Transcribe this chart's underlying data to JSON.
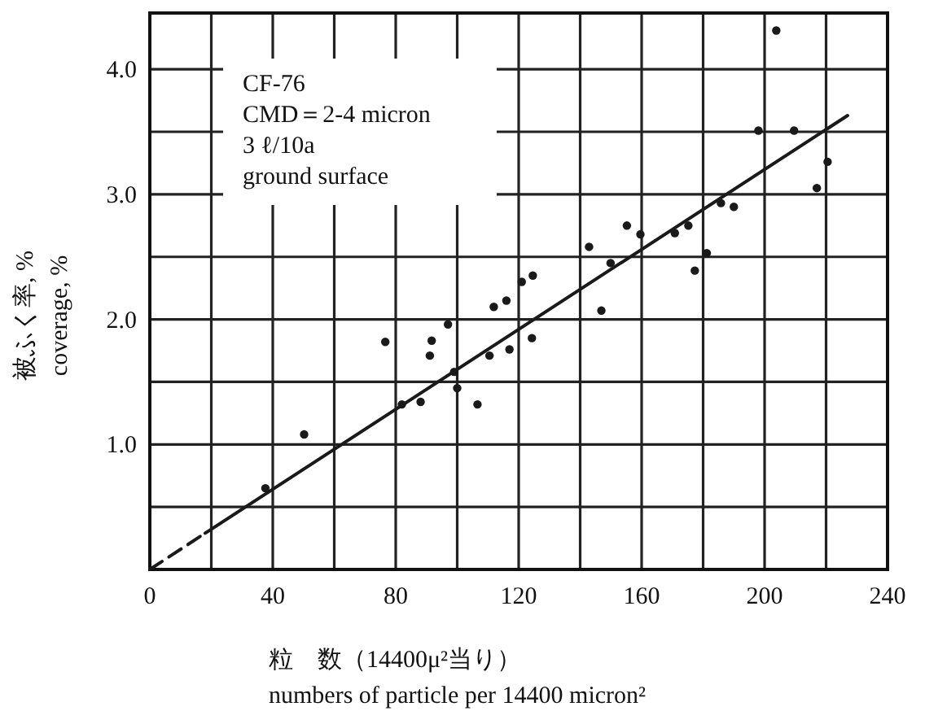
{
  "chart_data": {
    "type": "scatter",
    "xlabel": "粒　数（14400μ²当り）\nnumbers of particle per 14400 micron²",
    "ylabel": "被ふく率, %\ncoverage, %",
    "annotations": [
      "CF-76\nCMD＝2-4 micron\n3  ℓ/10a\nground surface"
    ],
    "xlim": [
      0,
      240
    ],
    "ylim": [
      0,
      4.45
    ],
    "xticks": [
      0,
      {
        "value": 20,
        "label": null
      },
      40,
      {
        "value": 60,
        "label": null
      },
      80,
      {
        "value": 100,
        "label": null
      },
      120,
      {
        "value": 140,
        "label": null
      },
      160,
      {
        "value": 180,
        "label": null
      },
      200,
      {
        "value": 220,
        "label": null
      },
      240
    ],
    "yticks": [
      {
        "value": 0.5,
        "label": null
      },
      {
        "value": 1,
        "label": "1.0"
      },
      {
        "value": 1.5,
        "label": null
      },
      {
        "value": 2,
        "label": "2.0"
      },
      {
        "value": 2.5,
        "label": null
      },
      {
        "value": 3,
        "label": "3.0"
      },
      {
        "value": 3.5,
        "label": null
      },
      {
        "value": 4,
        "label": "4.0"
      }
    ],
    "grid": true,
    "marker": "circle",
    "series": [
      {
        "color": "#1a1a1a",
        "x": [
          37.6,
          50.2,
          76.6,
          82,
          88.1,
          91.7,
          91.1,
          97,
          99,
          100,
          106.6,
          110.5,
          111.9,
          116,
          117,
          121,
          124.6,
          124.3,
          142.9,
          146.9,
          149.9,
          155.2,
          159.6,
          170.8,
          175.2,
          177.3,
          181.2,
          185.8,
          190,
          198,
          203.8,
          209.6,
          217,
          220.5
        ],
        "values": [
          0.65,
          1.08,
          1.82,
          1.32,
          1.34,
          1.83,
          1.71,
          1.96,
          1.58,
          1.45,
          1.32,
          1.71,
          2.1,
          2.15,
          1.76,
          2.3,
          2.35,
          1.85,
          2.58,
          2.07,
          2.45,
          2.75,
          2.68,
          2.69,
          2.75,
          2.39,
          2.53,
          2.93,
          2.9,
          3.51,
          4.31,
          3.51,
          3.05,
          3.26
        ]
      },
      {
        "type": "line",
        "color": "#1a1a1a",
        "line_style": "dashed",
        "marker": "none",
        "x": [
          0,
          18
        ],
        "values": [
          0,
          0.29
        ]
      },
      {
        "type": "line",
        "color": "#1a1a1a",
        "line_style": "solid",
        "marker": "none",
        "x": [
          18,
          227
        ],
        "values": [
          0.29,
          3.63
        ]
      }
    ]
  }
}
